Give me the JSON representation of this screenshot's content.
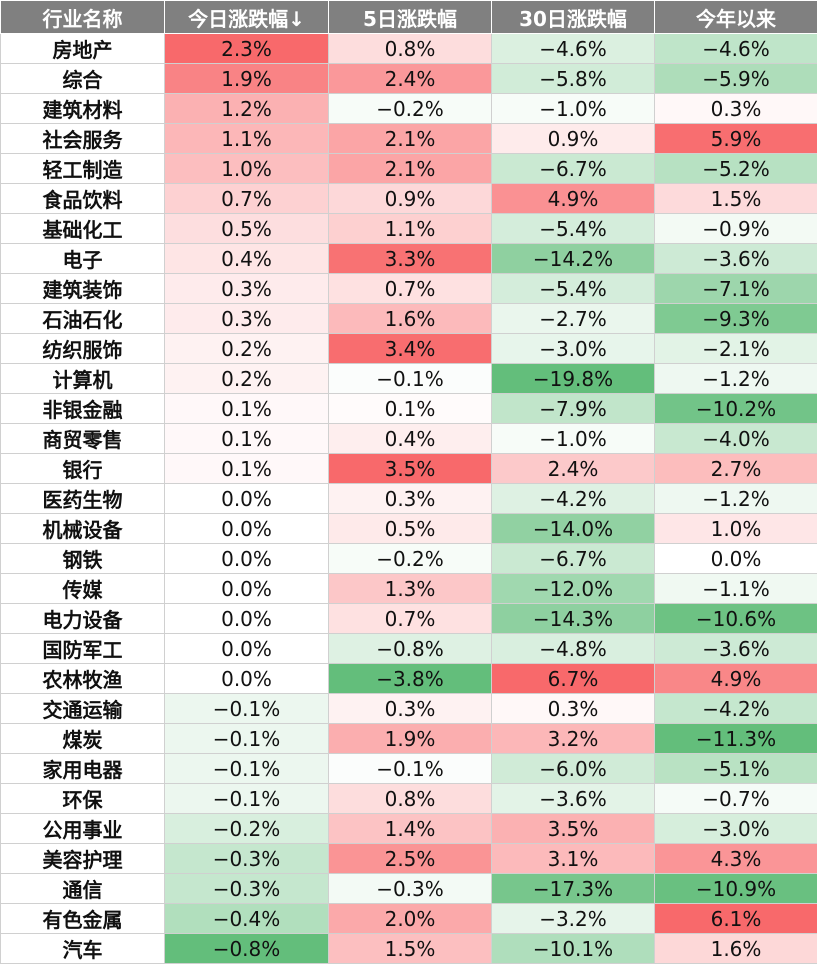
{
  "headers": [
    "行业名称",
    "今日涨跌幅↓",
    "5日涨跌幅",
    "30日涨跌幅",
    "今年以来"
  ],
  "colors": {
    "header_bg": "#808080",
    "up": "#f8696b",
    "down": "#63be7b",
    "neutral": "#ffffff"
  },
  "rows": [
    {
      "name": "房地产",
      "d1": "2.3%",
      "d5": "0.8%",
      "d30": "−4.6%",
      "ytd": "−4.6%"
    },
    {
      "name": "综合",
      "d1": "1.9%",
      "d5": "2.4%",
      "d30": "−5.8%",
      "ytd": "−5.9%"
    },
    {
      "name": "建筑材料",
      "d1": "1.2%",
      "d5": "−0.2%",
      "d30": "−1.0%",
      "ytd": "0.3%"
    },
    {
      "name": "社会服务",
      "d1": "1.1%",
      "d5": "2.1%",
      "d30": "0.9%",
      "ytd": "5.9%"
    },
    {
      "name": "轻工制造",
      "d1": "1.0%",
      "d5": "2.1%",
      "d30": "−6.7%",
      "ytd": "−5.2%"
    },
    {
      "name": "食品饮料",
      "d1": "0.7%",
      "d5": "0.9%",
      "d30": "4.9%",
      "ytd": "1.5%"
    },
    {
      "name": "基础化工",
      "d1": "0.5%",
      "d5": "1.1%",
      "d30": "−5.4%",
      "ytd": "−0.9%"
    },
    {
      "name": "电子",
      "d1": "0.4%",
      "d5": "3.3%",
      "d30": "−14.2%",
      "ytd": "−3.6%"
    },
    {
      "name": "建筑装饰",
      "d1": "0.3%",
      "d5": "0.7%",
      "d30": "−5.4%",
      "ytd": "−7.1%"
    },
    {
      "name": "石油石化",
      "d1": "0.3%",
      "d5": "1.6%",
      "d30": "−2.7%",
      "ytd": "−9.3%"
    },
    {
      "name": "纺织服饰",
      "d1": "0.2%",
      "d5": "3.4%",
      "d30": "−3.0%",
      "ytd": "−2.1%"
    },
    {
      "name": "计算机",
      "d1": "0.2%",
      "d5": "−0.1%",
      "d30": "−19.8%",
      "ytd": "−1.2%"
    },
    {
      "name": "非银金融",
      "d1": "0.1%",
      "d5": "0.1%",
      "d30": "−7.9%",
      "ytd": "−10.2%"
    },
    {
      "name": "商贸零售",
      "d1": "0.1%",
      "d5": "0.4%",
      "d30": "−1.0%",
      "ytd": "−4.0%"
    },
    {
      "name": "银行",
      "d1": "0.1%",
      "d5": "3.5%",
      "d30": "2.4%",
      "ytd": "2.7%"
    },
    {
      "name": "医药生物",
      "d1": "0.0%",
      "d5": "0.3%",
      "d30": "−4.2%",
      "ytd": "−1.2%"
    },
    {
      "name": "机械设备",
      "d1": "0.0%",
      "d5": "0.5%",
      "d30": "−14.0%",
      "ytd": "1.0%"
    },
    {
      "name": "钢铁",
      "d1": "0.0%",
      "d5": "−0.2%",
      "d30": "−6.7%",
      "ytd": "0.0%"
    },
    {
      "name": "传媒",
      "d1": "0.0%",
      "d5": "1.3%",
      "d30": "−12.0%",
      "ytd": "−1.1%"
    },
    {
      "name": "电力设备",
      "d1": "0.0%",
      "d5": "0.7%",
      "d30": "−14.3%",
      "ytd": "−10.6%"
    },
    {
      "name": "国防军工",
      "d1": "0.0%",
      "d5": "−0.8%",
      "d30": "−4.8%",
      "ytd": "−3.6%"
    },
    {
      "name": "农林牧渔",
      "d1": "0.0%",
      "d5": "−3.8%",
      "d30": "6.7%",
      "ytd": "4.9%"
    },
    {
      "name": "交通运输",
      "d1": "−0.1%",
      "d5": "0.3%",
      "d30": "0.3%",
      "ytd": "−4.2%"
    },
    {
      "name": "煤炭",
      "d1": "−0.1%",
      "d5": "1.9%",
      "d30": "3.2%",
      "ytd": "−11.3%"
    },
    {
      "name": "家用电器",
      "d1": "−0.1%",
      "d5": "−0.1%",
      "d30": "−6.0%",
      "ytd": "−5.1%"
    },
    {
      "name": "环保",
      "d1": "−0.1%",
      "d5": "0.8%",
      "d30": "−3.6%",
      "ytd": "−0.7%"
    },
    {
      "name": "公用事业",
      "d1": "−0.2%",
      "d5": "1.4%",
      "d30": "3.5%",
      "ytd": "−3.0%"
    },
    {
      "name": "美容护理",
      "d1": "−0.3%",
      "d5": "2.5%",
      "d30": "3.1%",
      "ytd": "4.3%"
    },
    {
      "name": "通信",
      "d1": "−0.3%",
      "d5": "−0.3%",
      "d30": "−17.3%",
      "ytd": "−10.9%"
    },
    {
      "name": "有色金属",
      "d1": "−0.4%",
      "d5": "2.0%",
      "d30": "−3.2%",
      "ytd": "6.1%"
    },
    {
      "name": "汽车",
      "d1": "−0.8%",
      "d5": "1.5%",
      "d30": "−10.1%",
      "ytd": "1.6%"
    }
  ]
}
